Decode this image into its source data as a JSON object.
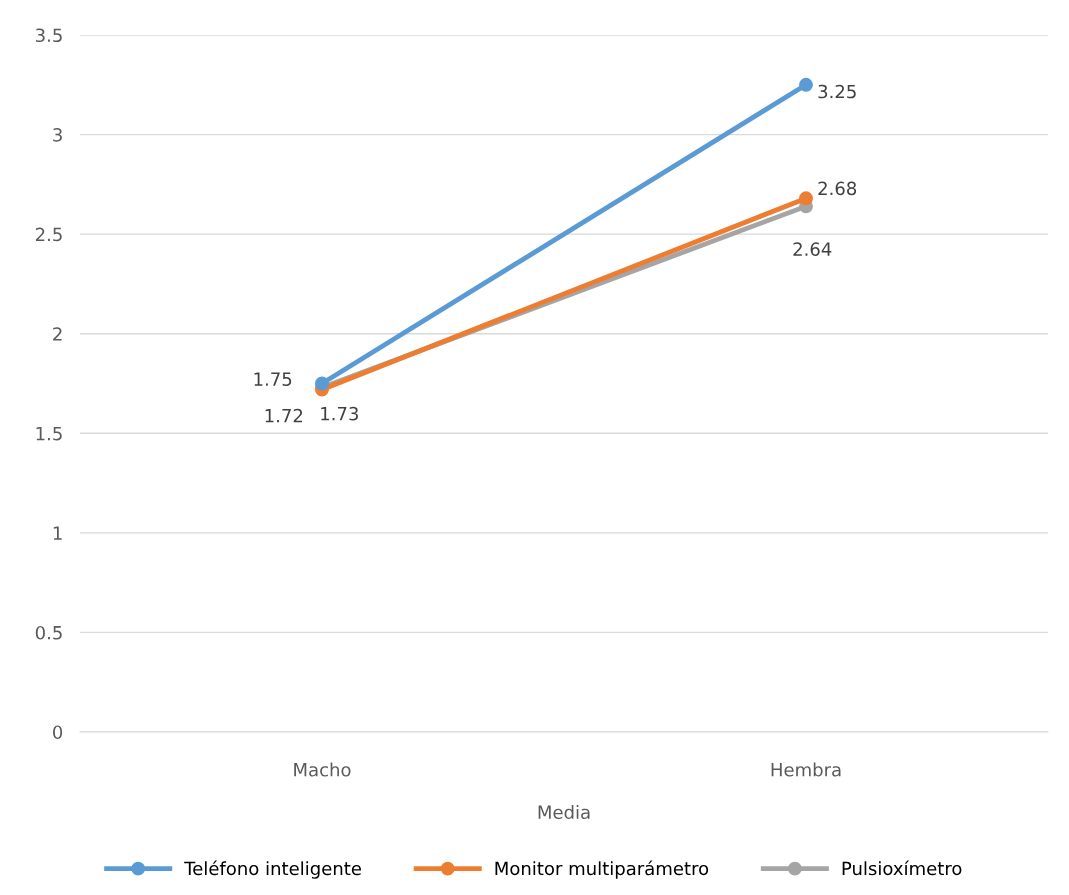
{
  "chart_data": {
    "type": "line",
    "categories": [
      "Macho",
      "Hembra"
    ],
    "xlabel": "Media",
    "series": [
      {
        "name": "Teléfono inteligente",
        "color": "#5b9bd5",
        "values": [
          1.75,
          3.25
        ]
      },
      {
        "name": "Monitor multiparámetro",
        "color": "#ed7d31",
        "values": [
          1.72,
          2.68
        ]
      },
      {
        "name": "Pulsioxímetro",
        "color": "#a5a5a5",
        "values": [
          1.73,
          2.64
        ]
      }
    ],
    "ylim": [
      0,
      3.5
    ],
    "yticks": [
      0,
      0.5,
      1,
      1.5,
      2,
      2.5,
      3,
      3.5
    ],
    "grid": "y",
    "legend": "bottom",
    "marker": "circle",
    "data_labels": true
  }
}
